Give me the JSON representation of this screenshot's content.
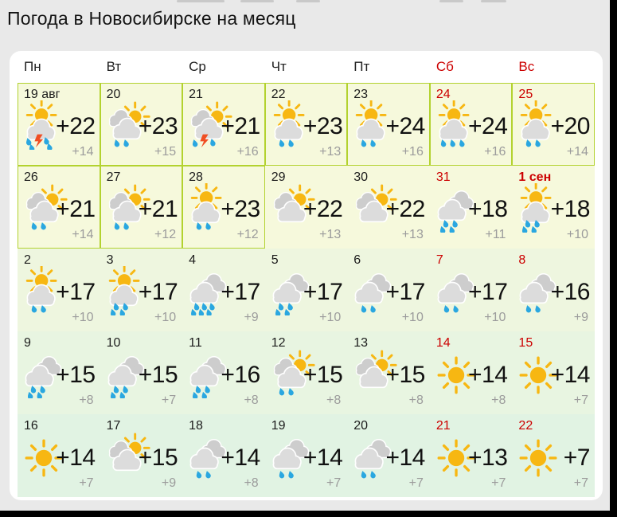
{
  "page": {
    "title": "Погода в Новосибирске на месяц"
  },
  "colors": {
    "accent_border": "#b3d22f",
    "weekend_red": "#cc0000",
    "low_temp_gray": "#9c9c9c",
    "sun": "#f7b712",
    "cloud_front": "#dcdcdc",
    "cloud_back": "#cdcdcd",
    "rain_drop": "#2aa7e0",
    "lightning": "#f04e23",
    "row_backgrounds": [
      "#f6f9dc",
      "#f6f9dc",
      "#eef6df",
      "#e8f5e1",
      "#e1f3e3"
    ]
  },
  "calendar": {
    "weekdays": [
      {
        "label": "Пн",
        "weekend": false
      },
      {
        "label": "Вт",
        "weekend": false
      },
      {
        "label": "Ср",
        "weekend": false
      },
      {
        "label": "Чт",
        "weekend": false
      },
      {
        "label": "Пт",
        "weekend": false
      },
      {
        "label": "Сб",
        "weekend": true
      },
      {
        "label": "Вс",
        "weekend": true
      }
    ],
    "days": [
      {
        "date": "19 авг",
        "weekend": false,
        "emphasis": false,
        "bordered": true,
        "high": "+22",
        "low": "+14",
        "icon": "storm-sun-icon",
        "drops": 4
      },
      {
        "date": "20",
        "weekend": false,
        "emphasis": false,
        "bordered": true,
        "high": "+23",
        "low": "+15",
        "icon": "cloud-sun-rain-icon",
        "drops": 2
      },
      {
        "date": "21",
        "weekend": false,
        "emphasis": false,
        "bordered": true,
        "high": "+21",
        "low": "+16",
        "icon": "cloud-sun-storm-icon",
        "drops": 2
      },
      {
        "date": "22",
        "weekend": false,
        "emphasis": false,
        "bordered": true,
        "high": "+23",
        "low": "+13",
        "icon": "sun-rain-icon",
        "drops": 2
      },
      {
        "date": "23",
        "weekend": false,
        "emphasis": false,
        "bordered": true,
        "high": "+24",
        "low": "+16",
        "icon": "sun-rain-icon",
        "drops": 2
      },
      {
        "date": "24",
        "weekend": true,
        "emphasis": false,
        "bordered": true,
        "high": "+24",
        "low": "+16",
        "icon": "sun-rain-icon",
        "drops": 3
      },
      {
        "date": "25",
        "weekend": true,
        "emphasis": false,
        "bordered": true,
        "high": "+20",
        "low": "+14",
        "icon": "sun-rain-icon",
        "drops": 2
      },
      {
        "date": "26",
        "weekend": false,
        "emphasis": false,
        "bordered": true,
        "high": "+21",
        "low": "+14",
        "icon": "cloud-sun-rain-icon",
        "drops": 2
      },
      {
        "date": "27",
        "weekend": false,
        "emphasis": false,
        "bordered": true,
        "high": "+21",
        "low": "+12",
        "icon": "cloud-sun-rain-icon",
        "drops": 2
      },
      {
        "date": "28",
        "weekend": false,
        "emphasis": false,
        "bordered": true,
        "high": "+23",
        "low": "+12",
        "icon": "sun-rain-icon",
        "drops": 2
      },
      {
        "date": "29",
        "weekend": false,
        "emphasis": false,
        "bordered": false,
        "high": "+22",
        "low": "+13",
        "icon": "cloud-sun-icon",
        "drops": 0
      },
      {
        "date": "30",
        "weekend": false,
        "emphasis": false,
        "bordered": false,
        "high": "+22",
        "low": "+13",
        "icon": "cloud-sun-icon",
        "drops": 0
      },
      {
        "date": "31",
        "weekend": true,
        "emphasis": false,
        "bordered": false,
        "high": "+18",
        "low": "+11",
        "icon": "rain-icon",
        "drops": 4
      },
      {
        "date": "1 сен",
        "weekend": true,
        "emphasis": true,
        "bordered": false,
        "high": "+18",
        "low": "+10",
        "icon": "sun-rain-icon",
        "drops": 4
      },
      {
        "date": "2",
        "weekend": false,
        "emphasis": false,
        "bordered": false,
        "high": "+17",
        "low": "+10",
        "icon": "sun-rain-icon",
        "drops": 2
      },
      {
        "date": "3",
        "weekend": false,
        "emphasis": false,
        "bordered": false,
        "high": "+17",
        "low": "+10",
        "icon": "sun-rain-icon",
        "drops": 4
      },
      {
        "date": "4",
        "weekend": false,
        "emphasis": false,
        "bordered": false,
        "high": "+17",
        "low": "+9",
        "icon": "rain-icon",
        "drops": 6
      },
      {
        "date": "5",
        "weekend": false,
        "emphasis": false,
        "bordered": false,
        "high": "+17",
        "low": "+10",
        "icon": "rain-icon",
        "drops": 4
      },
      {
        "date": "6",
        "weekend": false,
        "emphasis": false,
        "bordered": false,
        "high": "+17",
        "low": "+10",
        "icon": "rain-icon",
        "drops": 2
      },
      {
        "date": "7",
        "weekend": true,
        "emphasis": false,
        "bordered": false,
        "high": "+17",
        "low": "+10",
        "icon": "rain-icon",
        "drops": 2
      },
      {
        "date": "8",
        "weekend": true,
        "emphasis": false,
        "bordered": false,
        "high": "+16",
        "low": "+9",
        "icon": "rain-icon",
        "drops": 2
      },
      {
        "date": "9",
        "weekend": false,
        "emphasis": false,
        "bordered": false,
        "high": "+15",
        "low": "+8",
        "icon": "rain-icon",
        "drops": 4
      },
      {
        "date": "10",
        "weekend": false,
        "emphasis": false,
        "bordered": false,
        "high": "+15",
        "low": "+7",
        "icon": "rain-icon",
        "drops": 4
      },
      {
        "date": "11",
        "weekend": false,
        "emphasis": false,
        "bordered": false,
        "high": "+16",
        "low": "+8",
        "icon": "rain-icon",
        "drops": 4
      },
      {
        "date": "12",
        "weekend": false,
        "emphasis": false,
        "bordered": false,
        "high": "+15",
        "low": "+8",
        "icon": "cloud-sun-rain-icon",
        "drops": 2
      },
      {
        "date": "13",
        "weekend": false,
        "emphasis": false,
        "bordered": false,
        "high": "+15",
        "low": "+8",
        "icon": "cloud-sun-icon",
        "drops": 0
      },
      {
        "date": "14",
        "weekend": true,
        "emphasis": false,
        "bordered": false,
        "high": "+14",
        "low": "+8",
        "icon": "sun-icon",
        "drops": 0
      },
      {
        "date": "15",
        "weekend": true,
        "emphasis": false,
        "bordered": false,
        "high": "+14",
        "low": "+7",
        "icon": "sun-icon",
        "drops": 0
      },
      {
        "date": "16",
        "weekend": false,
        "emphasis": false,
        "bordered": false,
        "high": "+14",
        "low": "+7",
        "icon": "sun-icon",
        "drops": 0
      },
      {
        "date": "17",
        "weekend": false,
        "emphasis": false,
        "bordered": false,
        "high": "+15",
        "low": "+9",
        "icon": "cloud-sun-icon",
        "drops": 0
      },
      {
        "date": "18",
        "weekend": false,
        "emphasis": false,
        "bordered": false,
        "high": "+14",
        "low": "+8",
        "icon": "rain-icon",
        "drops": 2
      },
      {
        "date": "19",
        "weekend": false,
        "emphasis": false,
        "bordered": false,
        "high": "+14",
        "low": "+7",
        "icon": "rain-icon",
        "drops": 2
      },
      {
        "date": "20",
        "weekend": false,
        "emphasis": false,
        "bordered": false,
        "high": "+14",
        "low": "+7",
        "icon": "rain-icon",
        "drops": 2
      },
      {
        "date": "21",
        "weekend": true,
        "emphasis": false,
        "bordered": false,
        "high": "+13",
        "low": "+7",
        "icon": "sun-icon",
        "drops": 0
      },
      {
        "date": "22",
        "weekend": true,
        "emphasis": false,
        "bordered": false,
        "high": "+7",
        "low": "+7",
        "icon": "sun-icon",
        "drops": 0
      }
    ]
  }
}
